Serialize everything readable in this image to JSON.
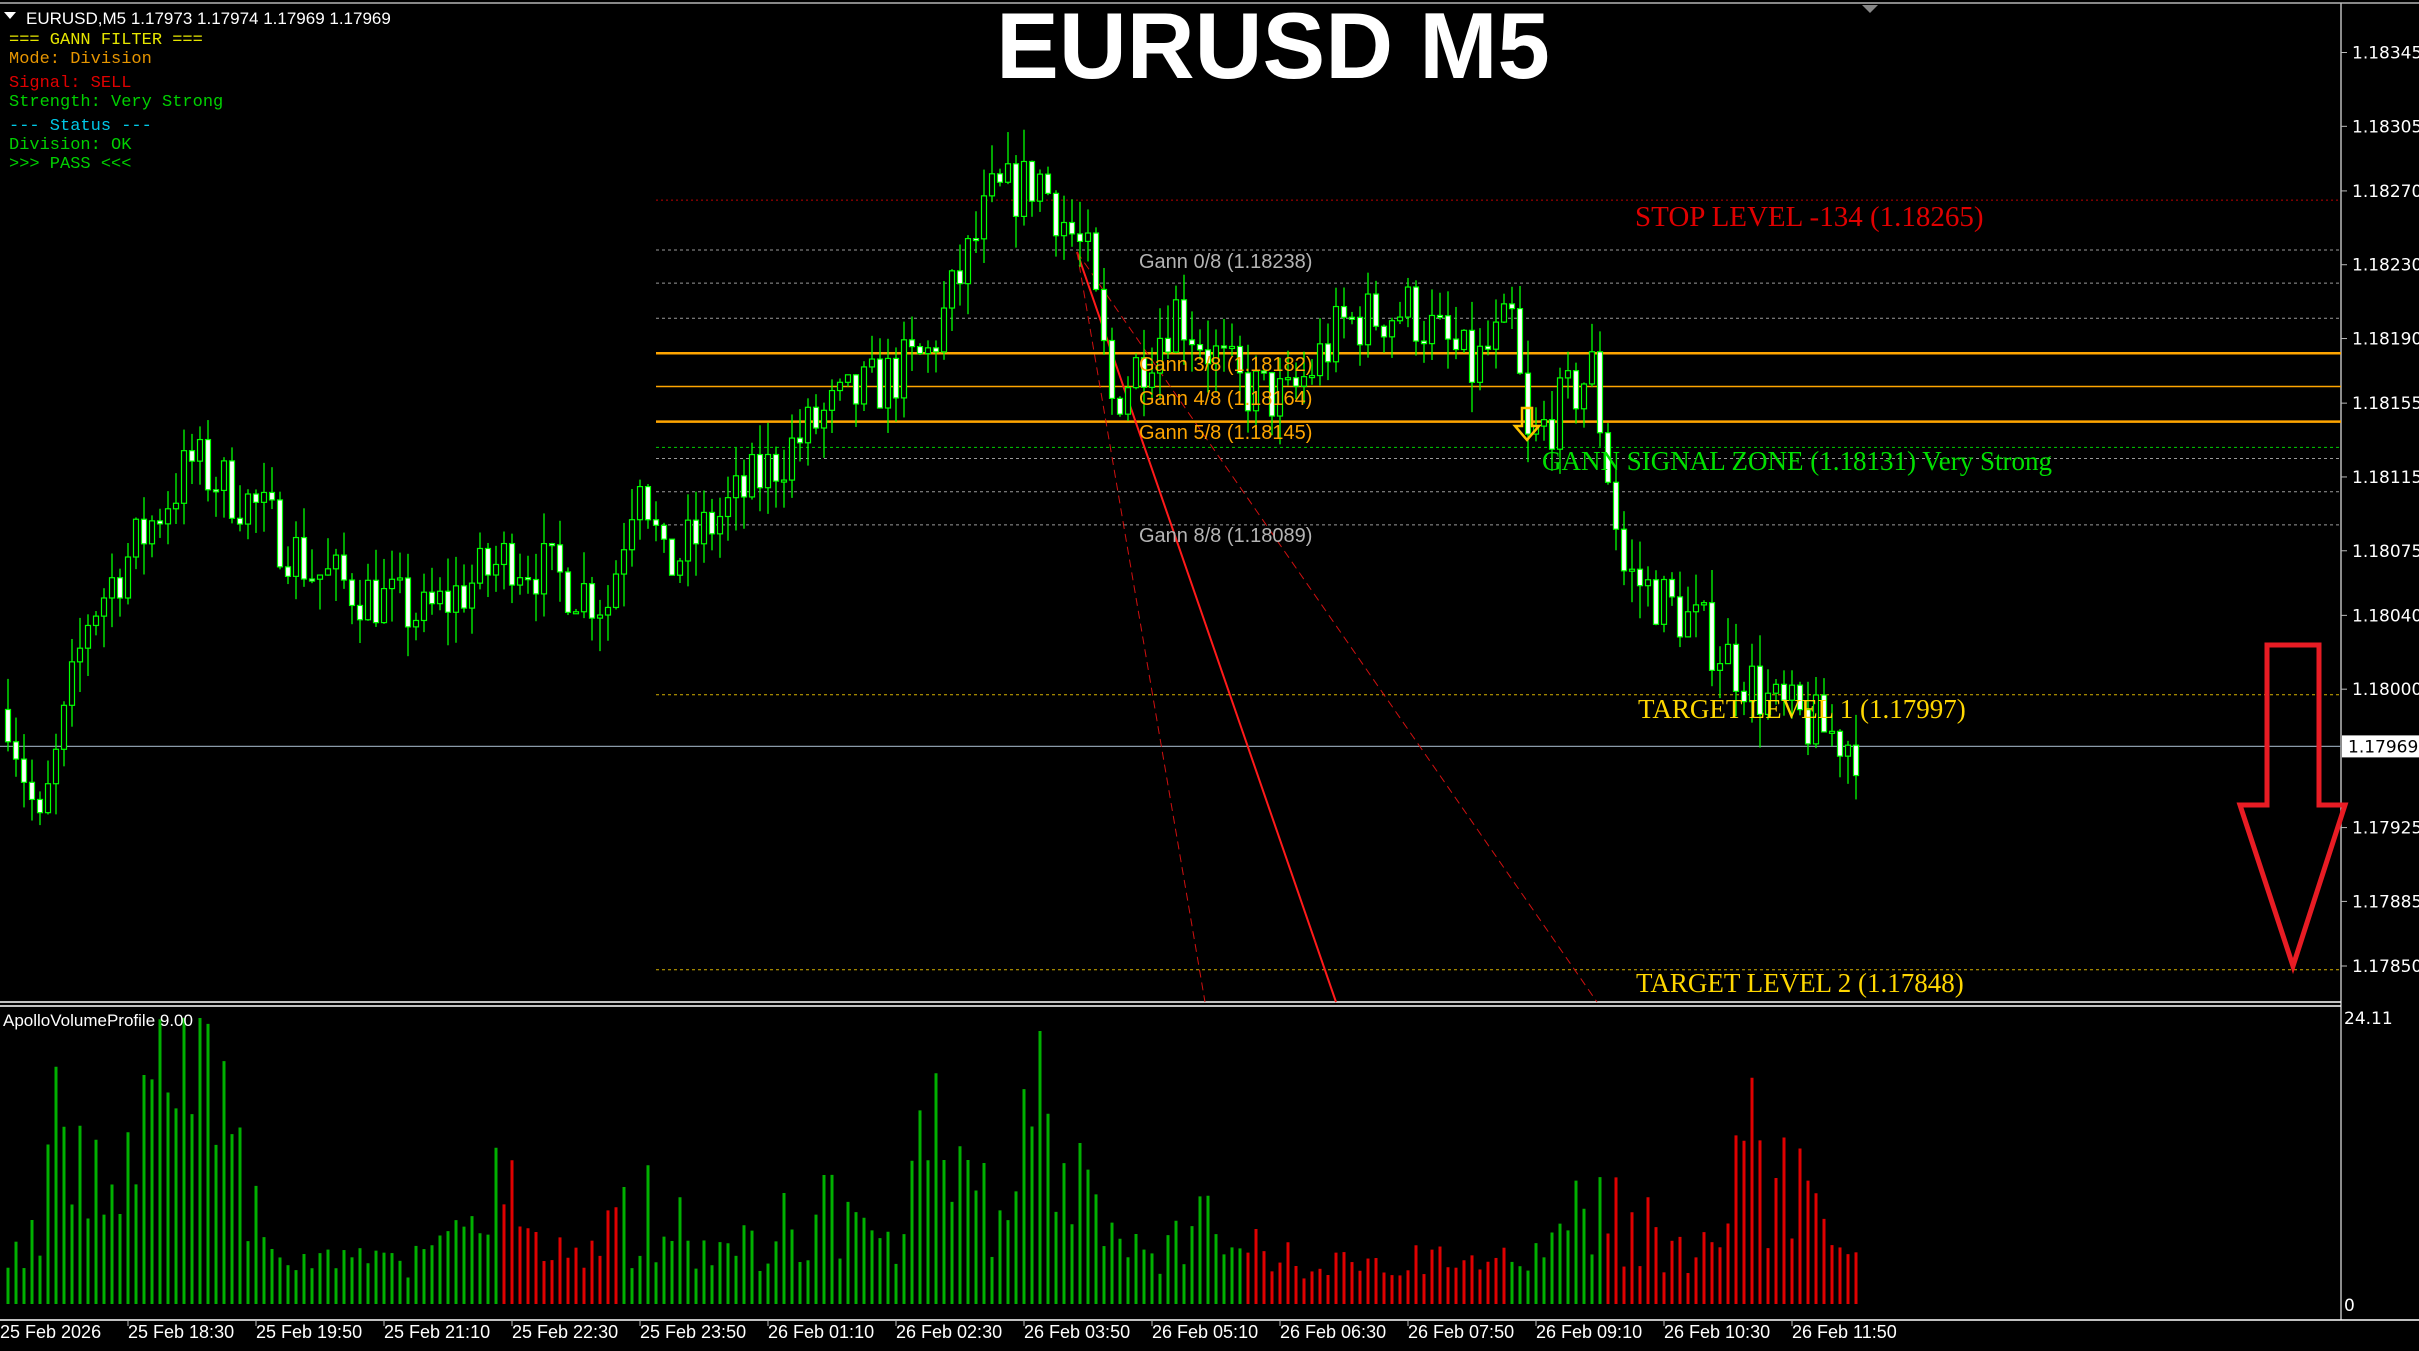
{
  "header": {
    "symbol_info": "EURUSD,M5  1.17973 1.17974 1.17969 1.17969"
  },
  "title": "EURUSD M5",
  "info_panel": {
    "lines": [
      {
        "text": "=== GANN FILTER ===",
        "color": "#e6e600"
      },
      {
        "text": "Mode: Division",
        "color": "#e69500"
      },
      {
        "text": "Signal: SELL",
        "color": "#e00000"
      },
      {
        "text": "Strength: Very Strong",
        "color": "#00d000"
      },
      {
        "text": "--- Status ---",
        "color": "#00c8e6"
      },
      {
        "text": "Division: OK",
        "color": "#00d000"
      },
      {
        "text": ">>> PASS <<<",
        "color": "#00d000"
      }
    ]
  },
  "levels": {
    "stop": {
      "label": "STOP LEVEL -134 (1.18265)",
      "price": 1.18265,
      "color": "#e00000"
    },
    "gann0": {
      "label": "Gann 0/8 (1.18238)",
      "price": 1.18238,
      "color": "#b4b4b4"
    },
    "gann3": {
      "label": "Gann 3/8 (1.18182)",
      "price": 1.18182,
      "color": "#ffa500"
    },
    "gann4": {
      "label": "Gann 4/8 (1.18164)",
      "price": 1.18164,
      "color": "#ffa500"
    },
    "gann5": {
      "label": "Gann 5/8 (1.18145)",
      "price": 1.18145,
      "color": "#ffa500"
    },
    "gann8": {
      "label": "Gann 8/8 (1.18089)",
      "price": 1.18089,
      "color": "#b4b4b4"
    },
    "signal": {
      "label": "GANN SIGNAL ZONE (1.18131) Very Strong",
      "price": 1.18131,
      "color": "#00e000"
    },
    "target1": {
      "label": "TARGET LEVEL 1 (1.17997)",
      "price": 1.17997,
      "color": "#ffd700"
    },
    "target2": {
      "label": "TARGET LEVEL 2 (1.17848)",
      "price": 1.17848,
      "color": "#ffd700"
    },
    "other_gann_prices": [
      1.1822,
      1.18201,
      1.18125,
      1.18107
    ]
  },
  "price_axis": {
    "ticks": [
      "1.18345",
      "1.18305",
      "1.18270",
      "1.18230",
      "1.18190",
      "1.18155",
      "1.18115",
      "1.18075",
      "1.18040",
      "1.18000",
      "1.17925",
      "1.17885",
      "1.17850"
    ],
    "current": "1.17969"
  },
  "time_axis": {
    "labels": [
      "25 Feb 2026",
      "25 Feb 18:30",
      "25 Feb 19:50",
      "25 Feb 21:10",
      "25 Feb 22:30",
      "25 Feb 23:50",
      "26 Feb 01:10",
      "26 Feb 02:30",
      "26 Feb 03:50",
      "26 Feb 05:10",
      "26 Feb 06:30",
      "26 Feb 07:50",
      "26 Feb 09:10",
      "26 Feb 10:30",
      "26 Feb 11:50"
    ]
  },
  "volume": {
    "title": "ApolloVolumeProfile 9.00",
    "max": "24.11",
    "min": "0",
    "up_color": "#00b000",
    "down_color": "#e00000"
  },
  "colors": {
    "bull": "#00ff00",
    "bear": "#ffffff",
    "current_line": "#8a9aa8",
    "signal_arrow": "#e81c24",
    "entry_arrow": "#ffc000"
  }
}
